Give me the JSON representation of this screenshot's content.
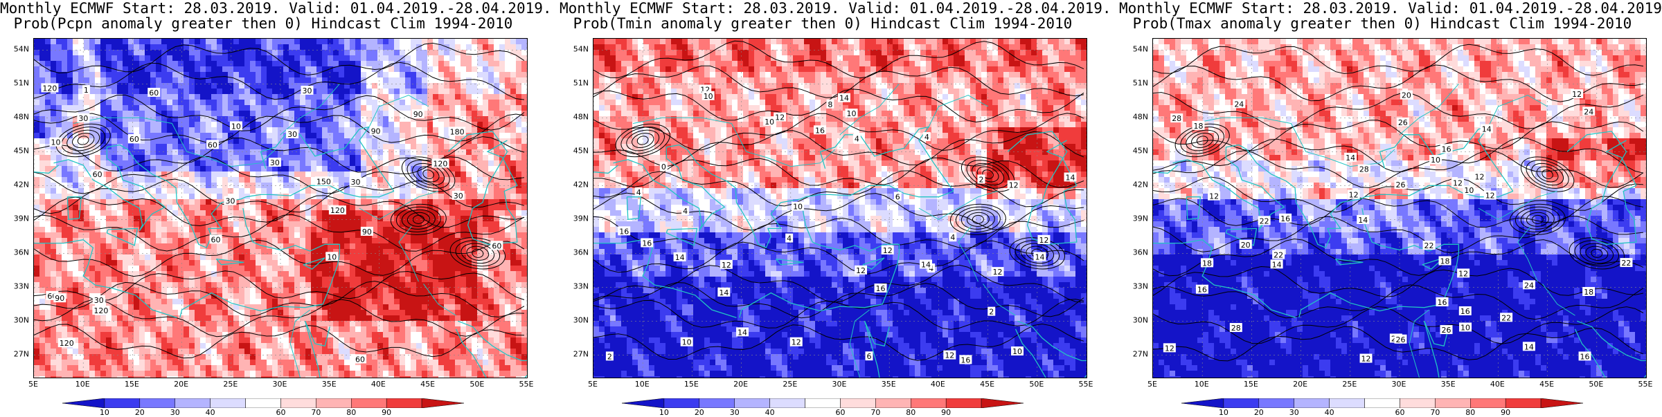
{
  "panels": [
    {
      "title1": "Monthly ECMWF Start: 28.03.2019. Valid: 01.04.2019.-28.04.2019.",
      "title2": "Prob(Pcpn anomaly greater then 0) Hindcast Clim 1994-2010",
      "variable": "precipitation",
      "contour_labels": [
        "120",
        "60",
        "90",
        "30",
        "60",
        "120",
        "60",
        "60",
        "30",
        "90",
        "90",
        "30",
        "120",
        "120",
        "180",
        "60",
        "30",
        "30",
        "120",
        "90",
        "60",
        "30",
        "150",
        "30",
        "60",
        "10",
        "60",
        "30",
        "10",
        "10",
        "1"
      ]
    },
    {
      "title1": "Monthly ECMWF Start: 28.03.2019. Valid: 01.04.2019.-28.04.2019.",
      "title2": "Prob(Tmin anomaly greater then 0) Hindcast Clim 1994-2010",
      "variable": "tmin",
      "contour_labels": [
        "2",
        "0",
        "4",
        "4",
        "2",
        "4",
        "2",
        "4",
        "6",
        "4",
        "4",
        "8",
        "6",
        "10",
        "12",
        "4",
        "12",
        "14",
        "14",
        "12",
        "16",
        "12",
        "10",
        "16",
        "10",
        "14",
        "12",
        "16",
        "14",
        "10",
        "12",
        "10",
        "12",
        "14",
        "12",
        "16",
        "14",
        "10",
        "12",
        "12",
        "16",
        "14"
      ]
    },
    {
      "title1": "Monthly ECMWF Start: 28.03.2019. Valid: 01.04.2019.-28.04.2019.",
      "title2": "Prob(Tmax anomaly greater then 0) Hindcast Clim 1994-2010",
      "variable": "tmax",
      "contour_labels": [
        "12",
        "12",
        "10",
        "12",
        "10",
        "16",
        "14",
        "12",
        "12",
        "10",
        "14",
        "16",
        "12",
        "14",
        "16",
        "18",
        "12",
        "20",
        "16",
        "14",
        "18",
        "16",
        "20",
        "20",
        "22",
        "24",
        "22",
        "24",
        "22",
        "18",
        "22",
        "26",
        "24",
        "28",
        "26",
        "28",
        "22",
        "28",
        "26",
        "14",
        "12",
        "12",
        "16",
        "18",
        "26"
      ]
    }
  ],
  "axes": {
    "lat_labels": [
      "54N",
      "51N",
      "48N",
      "45N",
      "42N",
      "39N",
      "36N",
      "33N",
      "30N",
      "27N"
    ],
    "lat_values": [
      54,
      51,
      48,
      45,
      42,
      39,
      36,
      33,
      30,
      27
    ],
    "lon_labels": [
      "5E",
      "10E",
      "15E",
      "20E",
      "25E",
      "30E",
      "35E",
      "40E",
      "45E",
      "50E",
      "55E"
    ],
    "lon_values": [
      5,
      10,
      15,
      20,
      25,
      30,
      35,
      40,
      45,
      50,
      55
    ],
    "lat_range": [
      25,
      55
    ],
    "lon_range": [
      5,
      55
    ]
  },
  "colorbar": {
    "levels": [
      "10",
      "20",
      "30",
      "40",
      "60",
      "70",
      "80",
      "90"
    ],
    "colors": [
      "#1414c8",
      "#3c3cf0",
      "#7878ff",
      "#b4b4ff",
      "#dcdcff",
      "#ffffff",
      "#ffdcdc",
      "#ffb4b4",
      "#ff7878",
      "#f03c3c",
      "#c81414"
    ]
  },
  "colors": {
    "coast": "#22c4c4",
    "contour": "#000000",
    "grid": "#888888"
  }
}
